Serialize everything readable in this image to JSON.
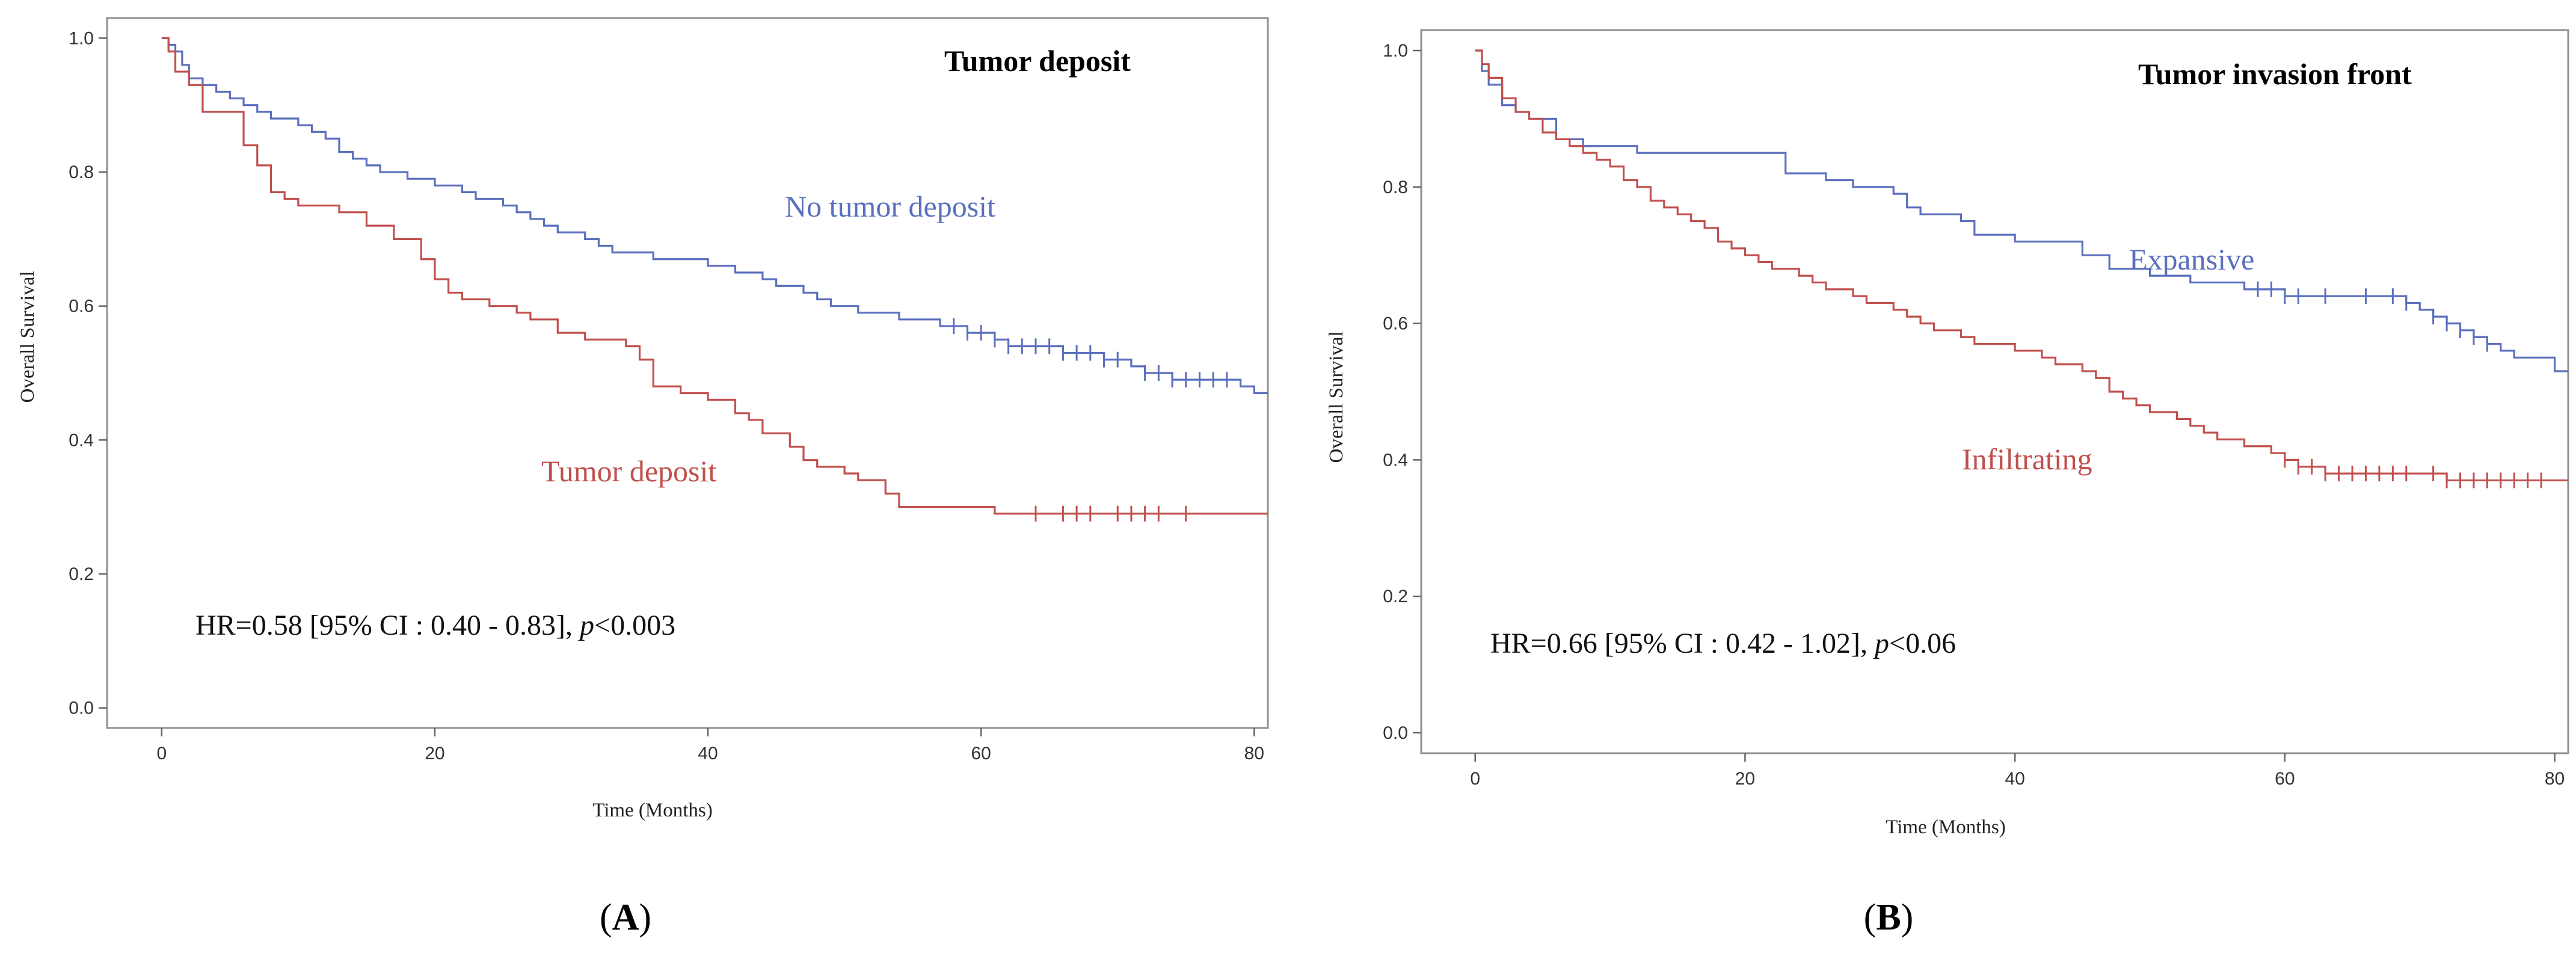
{
  "chart_data": [
    {
      "type": "line",
      "step": true,
      "panel_label": "A",
      "title": "Tumor deposit",
      "xlabel": "Time (Months)",
      "ylabel": "Overall Survival",
      "xlim": [
        -4,
        81
      ],
      "ylim": [
        -0.03,
        1.03
      ],
      "xticks": [
        0,
        20,
        40,
        60,
        80
      ],
      "yticks": [
        0.0,
        0.2,
        0.4,
        0.6,
        0.8,
        1.0
      ],
      "xtick_labels": [
        "0",
        "20",
        "40",
        "60",
        "80"
      ],
      "ytick_labels": [
        "0.0",
        "0.2",
        "0.4",
        "0.6",
        "0.8",
        "1.0"
      ],
      "annotation": {
        "prefix": "HR=0.58 [95% CI : 0.40 - 0.83], ",
        "italic": "p",
        "suffix": "<0.003"
      },
      "series": [
        {
          "name": "No tumor deposit",
          "color": "#5a6fbd",
          "x": [
            0,
            0.5,
            1,
            1.5,
            2,
            3,
            4,
            5,
            6,
            7,
            8,
            9,
            10,
            11,
            12,
            13,
            14,
            15,
            16,
            17,
            18,
            19,
            20,
            21,
            22,
            23,
            24,
            25,
            26,
            27,
            28,
            29,
            30,
            31,
            32,
            33,
            34,
            35,
            36,
            37,
            38,
            39,
            40,
            41,
            42,
            43,
            44,
            45,
            46,
            47,
            48,
            49,
            50,
            51,
            52,
            53,
            54,
            55,
            56,
            57,
            58,
            59,
            60,
            61,
            62,
            63,
            64,
            65,
            66,
            67,
            68,
            69,
            70,
            71,
            72,
            73,
            74,
            75,
            76,
            77,
            78,
            79,
            80,
            81
          ],
          "y": [
            1.0,
            0.99,
            0.98,
            0.96,
            0.94,
            0.93,
            0.92,
            0.91,
            0.9,
            0.89,
            0.88,
            0.88,
            0.87,
            0.86,
            0.85,
            0.83,
            0.82,
            0.81,
            0.8,
            0.8,
            0.79,
            0.79,
            0.78,
            0.78,
            0.77,
            0.76,
            0.76,
            0.75,
            0.74,
            0.73,
            0.72,
            0.71,
            0.71,
            0.7,
            0.69,
            0.68,
            0.68,
            0.68,
            0.67,
            0.67,
            0.67,
            0.67,
            0.66,
            0.66,
            0.65,
            0.65,
            0.64,
            0.63,
            0.63,
            0.62,
            0.61,
            0.6,
            0.6,
            0.59,
            0.59,
            0.59,
            0.58,
            0.58,
            0.58,
            0.57,
            0.57,
            0.56,
            0.56,
            0.55,
            0.54,
            0.54,
            0.54,
            0.54,
            0.53,
            0.53,
            0.53,
            0.52,
            0.52,
            0.51,
            0.5,
            0.5,
            0.49,
            0.49,
            0.49,
            0.49,
            0.49,
            0.48,
            0.47,
            0.47
          ],
          "censor_x": [
            58,
            59,
            60,
            61,
            62,
            63,
            64,
            65,
            66,
            67,
            68,
            69,
            70,
            72,
            73,
            74,
            75,
            76,
            77,
            78
          ]
        },
        {
          "name": "Tumor deposit",
          "color": "#c0504d",
          "x": [
            0,
            0.5,
            1,
            2,
            3,
            5,
            6,
            7,
            8,
            9,
            10,
            12,
            13,
            15,
            17,
            19,
            20,
            21,
            22,
            24,
            26,
            27,
            29,
            31,
            33,
            34,
            35,
            36,
            37,
            38,
            40,
            42,
            43,
            44,
            46,
            47,
            48,
            50,
            51,
            52,
            53,
            54,
            56,
            57,
            58,
            59,
            60,
            61,
            62,
            63,
            64,
            65,
            66,
            67,
            68,
            69,
            70,
            71,
            72,
            73,
            74,
            75,
            76,
            77,
            78,
            79,
            80,
            81
          ],
          "y": [
            1.0,
            0.98,
            0.95,
            0.93,
            0.89,
            0.89,
            0.84,
            0.81,
            0.77,
            0.76,
            0.75,
            0.75,
            0.74,
            0.72,
            0.7,
            0.67,
            0.64,
            0.62,
            0.61,
            0.6,
            0.59,
            0.58,
            0.56,
            0.55,
            0.55,
            0.54,
            0.52,
            0.48,
            0.48,
            0.47,
            0.46,
            0.44,
            0.43,
            0.41,
            0.39,
            0.37,
            0.36,
            0.35,
            0.34,
            0.34,
            0.32,
            0.3,
            0.3,
            0.3,
            0.3,
            0.3,
            0.3,
            0.29,
            0.29,
            0.29,
            0.29,
            0.29,
            0.29,
            0.29,
            0.29,
            0.29,
            0.29,
            0.29,
            0.29,
            0.29,
            0.29,
            0.29,
            0.29,
            0.29,
            0.29,
            0.29,
            0.29,
            0.29
          ],
          "censor_x": [
            64,
            66,
            67,
            68,
            70,
            71,
            72,
            73,
            75
          ]
        }
      ]
    },
    {
      "type": "line",
      "step": true,
      "panel_label": "B",
      "title": "Tumor invasion front",
      "xlabel": "Time (Months)",
      "ylabel": "Overall Survival",
      "xlim": [
        -4,
        81
      ],
      "ylim": [
        -0.03,
        1.03
      ],
      "xticks": [
        0,
        20,
        40,
        60,
        80
      ],
      "yticks": [
        0.0,
        0.2,
        0.4,
        0.6,
        0.8,
        1.0
      ],
      "xtick_labels": [
        "0",
        "20",
        "40",
        "60",
        "80"
      ],
      "ytick_labels": [
        "0.0",
        "0.2",
        "0.4",
        "0.6",
        "0.8",
        "1.0"
      ],
      "annotation": {
        "prefix": "HR=0.66 [95% CI : 0.42 - 1.02], ",
        "italic": "p",
        "suffix": "<0.06"
      },
      "series": [
        {
          "name": "Expansive",
          "color": "#5a6fbd",
          "x": [
            0,
            0.5,
            1,
            2,
            3,
            4,
            6,
            8,
            12,
            15,
            20,
            23,
            26,
            28,
            31,
            32,
            33,
            36,
            37,
            40,
            45,
            47,
            50,
            53,
            57,
            60,
            62,
            64,
            68,
            69,
            70,
            71,
            72,
            73,
            74,
            75,
            76,
            77,
            79,
            80,
            81
          ],
          "y": [
            1.0,
            0.97,
            0.95,
            0.92,
            0.91,
            0.9,
            0.87,
            0.86,
            0.85,
            0.85,
            0.85,
            0.82,
            0.81,
            0.8,
            0.79,
            0.77,
            0.76,
            0.75,
            0.73,
            0.72,
            0.7,
            0.68,
            0.67,
            0.66,
            0.65,
            0.64,
            0.64,
            0.64,
            0.64,
            0.63,
            0.62,
            0.61,
            0.6,
            0.59,
            0.58,
            0.57,
            0.56,
            0.55,
            0.55,
            0.53,
            0.53
          ],
          "censor_x": [
            58,
            59,
            60,
            61,
            63,
            66,
            68,
            69,
            71,
            72,
            73,
            74,
            75
          ]
        },
        {
          "name": "Infiltrating",
          "color": "#c0504d",
          "x": [
            0,
            0.5,
            1,
            2,
            3,
            4,
            5,
            6,
            7,
            8,
            9,
            10,
            11,
            12,
            13,
            14,
            15,
            16,
            17,
            18,
            19,
            20,
            21,
            22,
            23,
            24,
            25,
            26,
            27,
            28,
            29,
            30,
            31,
            32,
            33,
            34,
            35,
            36,
            37,
            38,
            39,
            40,
            41,
            42,
            43,
            44,
            45,
            46,
            47,
            48,
            49,
            50,
            51,
            52,
            53,
            54,
            55,
            56,
            57,
            58,
            59,
            60,
            61,
            62,
            63,
            64,
            65,
            66,
            67,
            68,
            69,
            70,
            71,
            72,
            73,
            74,
            75,
            76,
            77,
            78,
            79,
            80,
            81
          ],
          "y": [
            1.0,
            0.98,
            0.96,
            0.93,
            0.91,
            0.9,
            0.88,
            0.87,
            0.86,
            0.85,
            0.84,
            0.83,
            0.81,
            0.8,
            0.78,
            0.77,
            0.76,
            0.75,
            0.74,
            0.72,
            0.71,
            0.7,
            0.69,
            0.68,
            0.68,
            0.67,
            0.66,
            0.65,
            0.65,
            0.64,
            0.63,
            0.63,
            0.62,
            0.61,
            0.6,
            0.59,
            0.59,
            0.58,
            0.57,
            0.57,
            0.57,
            0.56,
            0.56,
            0.55,
            0.54,
            0.54,
            0.53,
            0.52,
            0.5,
            0.49,
            0.48,
            0.47,
            0.47,
            0.46,
            0.45,
            0.44,
            0.43,
            0.43,
            0.42,
            0.42,
            0.41,
            0.4,
            0.39,
            0.39,
            0.38,
            0.38,
            0.38,
            0.38,
            0.38,
            0.38,
            0.38,
            0.38,
            0.38,
            0.37,
            0.37,
            0.37,
            0.37,
            0.37,
            0.37,
            0.37,
            0.37,
            0.37,
            0.37
          ],
          "censor_x": [
            60,
            61,
            62,
            63,
            64,
            65,
            66,
            67,
            68,
            69,
            71,
            72,
            73,
            74,
            75,
            76,
            77,
            78,
            79
          ]
        }
      ]
    }
  ]
}
